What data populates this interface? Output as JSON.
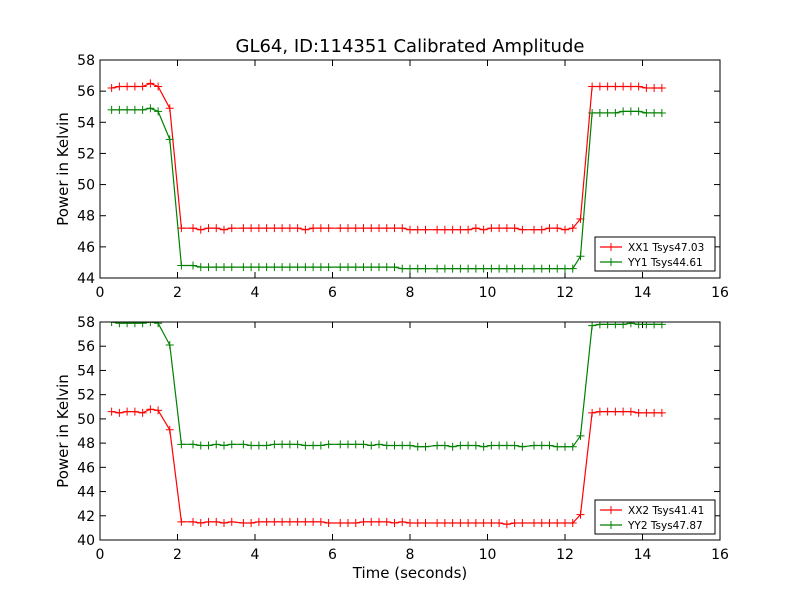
{
  "chart_data": [
    {
      "type": "line",
      "title": "GL64, ID:114351 Calibrated Amplitude",
      "xlabel": "",
      "ylabel": "Power in Kelvin",
      "xlim": [
        0,
        16
      ],
      "ylim": [
        44,
        58
      ],
      "xticks": [
        0,
        2,
        4,
        6,
        8,
        10,
        12,
        14,
        16
      ],
      "yticks": [
        44,
        46,
        48,
        50,
        52,
        54,
        56,
        58
      ],
      "grid": false,
      "legend_position": "lower-right",
      "x": [
        0.3,
        0.5,
        0.7,
        0.9,
        1.1,
        1.3,
        1.5,
        1.8,
        2.1,
        2.4,
        2.6,
        2.8,
        3.0,
        3.2,
        3.4,
        3.7,
        3.9,
        4.1,
        4.3,
        4.5,
        4.7,
        4.9,
        5.1,
        5.3,
        5.5,
        5.7,
        5.9,
        6.2,
        6.4,
        6.6,
        6.8,
        7.0,
        7.2,
        7.4,
        7.6,
        7.8,
        8.0,
        8.2,
        8.4,
        8.7,
        8.9,
        9.1,
        9.3,
        9.5,
        9.7,
        9.9,
        10.1,
        10.3,
        10.5,
        10.7,
        10.9,
        11.2,
        11.4,
        11.6,
        11.8,
        12.0,
        12.2,
        12.4,
        12.7,
        12.9,
        13.1,
        13.3,
        13.5,
        13.7,
        13.9,
        14.1,
        14.3,
        14.5
      ],
      "series": [
        {
          "name": "XX1 Tsys47.03",
          "color": "#ff0000",
          "values": [
            56.2,
            56.3,
            56.3,
            56.3,
            56.3,
            56.5,
            56.3,
            54.9,
            47.2,
            47.2,
            47.1,
            47.2,
            47.2,
            47.1,
            47.2,
            47.2,
            47.2,
            47.2,
            47.2,
            47.2,
            47.2,
            47.2,
            47.2,
            47.1,
            47.2,
            47.2,
            47.2,
            47.2,
            47.2,
            47.2,
            47.2,
            47.2,
            47.2,
            47.2,
            47.2,
            47.2,
            47.1,
            47.1,
            47.1,
            47.1,
            47.1,
            47.1,
            47.1,
            47.1,
            47.2,
            47.1,
            47.2,
            47.2,
            47.2,
            47.2,
            47.1,
            47.1,
            47.1,
            47.2,
            47.2,
            47.1,
            47.2,
            47.8,
            56.3,
            56.3,
            56.3,
            56.3,
            56.3,
            56.3,
            56.3,
            56.2,
            56.2,
            56.2
          ]
        },
        {
          "name": "YY1 Tsys44.61",
          "color": "#008000",
          "values": [
            54.8,
            54.8,
            54.8,
            54.8,
            54.8,
            54.9,
            54.7,
            52.9,
            44.8,
            44.8,
            44.7,
            44.7,
            44.7,
            44.7,
            44.7,
            44.7,
            44.7,
            44.7,
            44.7,
            44.7,
            44.7,
            44.7,
            44.7,
            44.7,
            44.7,
            44.7,
            44.7,
            44.7,
            44.7,
            44.7,
            44.7,
            44.7,
            44.7,
            44.7,
            44.7,
            44.6,
            44.6,
            44.6,
            44.6,
            44.6,
            44.6,
            44.6,
            44.6,
            44.6,
            44.6,
            44.6,
            44.6,
            44.6,
            44.6,
            44.6,
            44.6,
            44.6,
            44.6,
            44.6,
            44.6,
            44.6,
            44.6,
            45.4,
            54.6,
            54.6,
            54.6,
            54.6,
            54.7,
            54.7,
            54.7,
            54.6,
            54.6,
            54.6
          ]
        }
      ]
    },
    {
      "type": "line",
      "title": "",
      "xlabel": "Time (seconds)",
      "ylabel": "Power in Kelvin",
      "xlim": [
        0,
        16
      ],
      "ylim": [
        40,
        58
      ],
      "xticks": [
        0,
        2,
        4,
        6,
        8,
        10,
        12,
        14,
        16
      ],
      "yticks": [
        40,
        42,
        44,
        46,
        48,
        50,
        52,
        54,
        56,
        58
      ],
      "grid": false,
      "legend_position": "lower-right",
      "x": [
        0.3,
        0.5,
        0.7,
        0.9,
        1.1,
        1.3,
        1.5,
        1.8,
        2.1,
        2.4,
        2.6,
        2.8,
        3.0,
        3.2,
        3.4,
        3.7,
        3.9,
        4.1,
        4.3,
        4.5,
        4.7,
        4.9,
        5.1,
        5.3,
        5.5,
        5.7,
        5.9,
        6.2,
        6.4,
        6.6,
        6.8,
        7.0,
        7.2,
        7.4,
        7.6,
        7.8,
        8.0,
        8.2,
        8.4,
        8.7,
        8.9,
        9.1,
        9.3,
        9.5,
        9.7,
        9.9,
        10.1,
        10.3,
        10.5,
        10.7,
        10.9,
        11.2,
        11.4,
        11.6,
        11.8,
        12.0,
        12.2,
        12.4,
        12.7,
        12.9,
        13.1,
        13.3,
        13.5,
        13.7,
        13.9,
        14.1,
        14.3,
        14.5
      ],
      "series": [
        {
          "name": "XX2 Tsys41.41",
          "color": "#ff0000",
          "values": [
            50.6,
            50.5,
            50.6,
            50.6,
            50.5,
            50.8,
            50.7,
            49.1,
            41.5,
            41.5,
            41.4,
            41.5,
            41.5,
            41.4,
            41.5,
            41.4,
            41.4,
            41.5,
            41.5,
            41.5,
            41.5,
            41.5,
            41.5,
            41.5,
            41.5,
            41.5,
            41.4,
            41.4,
            41.4,
            41.4,
            41.5,
            41.5,
            41.5,
            41.5,
            41.4,
            41.5,
            41.4,
            41.4,
            41.4,
            41.4,
            41.4,
            41.4,
            41.4,
            41.4,
            41.4,
            41.4,
            41.4,
            41.4,
            41.3,
            41.4,
            41.4,
            41.4,
            41.4,
            41.4,
            41.4,
            41.4,
            41.4,
            42.1,
            50.5,
            50.6,
            50.6,
            50.6,
            50.6,
            50.6,
            50.5,
            50.5,
            50.5,
            50.5
          ]
        },
        {
          "name": "YY2 Tsys47.87",
          "color": "#008000",
          "values": [
            58.0,
            57.9,
            57.9,
            57.9,
            57.9,
            58.0,
            57.9,
            56.1,
            47.9,
            47.9,
            47.8,
            47.8,
            47.9,
            47.8,
            47.9,
            47.9,
            47.8,
            47.8,
            47.8,
            47.9,
            47.9,
            47.9,
            47.9,
            47.8,
            47.8,
            47.8,
            47.9,
            47.9,
            47.9,
            47.9,
            47.9,
            47.8,
            47.9,
            47.8,
            47.8,
            47.8,
            47.8,
            47.7,
            47.7,
            47.8,
            47.8,
            47.7,
            47.8,
            47.8,
            47.8,
            47.7,
            47.8,
            47.8,
            47.8,
            47.8,
            47.7,
            47.8,
            47.8,
            47.8,
            47.7,
            47.7,
            47.7,
            48.6,
            57.7,
            57.8,
            57.8,
            57.8,
            57.8,
            57.9,
            57.8,
            57.8,
            57.8,
            57.8
          ]
        }
      ]
    }
  ]
}
